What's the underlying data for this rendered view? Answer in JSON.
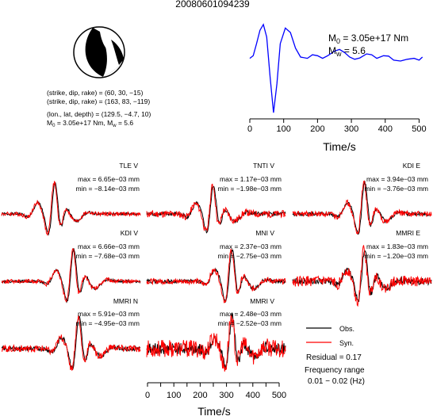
{
  "figure": {
    "title": "20080601094239",
    "source_params": [
      "(strike, dip, rake) = (60, 30, −15)",
      "(strike, dip, rake) = (163, 83, −119)",
      "(lon., lat, depth) = (129.5, −4.7, 10)"
    ],
    "mag_line": {
      "m0_text": "= 3.05e+17 Nm, M",
      "mw_text": "= 5.6"
    },
    "stf_m0_label": "= 3.05e+17 Nm",
    "stf_mw_label": "= 5.6",
    "stf_xlabel": "Time/s",
    "bottom_xlabel": "Time/s",
    "legend": {
      "obs": "Obs.",
      "syn": "Syn."
    },
    "residual": "Residual = 0.17",
    "freq_label": "Frequency range",
    "freq_value": "0.01 − 0.02 (Hz)",
    "colors": {
      "obs": "#000000",
      "syn": "#ff0000",
      "stf": "#0000ff"
    }
  },
  "chart_data": [
    {
      "type": "line",
      "name": "source time function",
      "xlabel": "Time/s",
      "xlim": [
        0,
        520
      ],
      "xticks": [
        0,
        100,
        200,
        300,
        400,
        500
      ],
      "series": [
        {
          "name": "stf",
          "color": "#0000ff",
          "points": [
            [
              0,
              0.22
            ],
            [
              10,
              0.28
            ],
            [
              20,
              0.55
            ],
            [
              30,
              0.85
            ],
            [
              40,
              0.98
            ],
            [
              50,
              0.7
            ],
            [
              60,
              -0.2
            ],
            [
              70,
              -1.0
            ],
            [
              80,
              -0.35
            ],
            [
              90,
              0.55
            ],
            [
              105,
              0.9
            ],
            [
              120,
              0.8
            ],
            [
              135,
              0.45
            ],
            [
              150,
              0.25
            ],
            [
              170,
              0.22
            ],
            [
              185,
              0.3
            ],
            [
              200,
              0.28
            ],
            [
              215,
              0.22
            ],
            [
              230,
              0.28
            ],
            [
              250,
              0.38
            ],
            [
              265,
              0.42
            ],
            [
              280,
              0.35
            ],
            [
              295,
              0.25
            ],
            [
              310,
              0.2
            ],
            [
              325,
              0.23
            ],
            [
              345,
              0.32
            ],
            [
              360,
              0.3
            ],
            [
              375,
              0.22
            ],
            [
              395,
              0.28
            ],
            [
              410,
              0.27
            ],
            [
              425,
              0.18
            ],
            [
              445,
              0.16
            ],
            [
              465,
              0.2
            ],
            [
              485,
              0.22
            ],
            [
              500,
              0.18
            ],
            [
              510,
              0.25
            ]
          ]
        }
      ]
    },
    {
      "type": "line",
      "name": "waveform fits",
      "xlabel": "Time/s",
      "xlim": [
        0,
        520
      ],
      "xticks": [
        0,
        50,
        100,
        150,
        200,
        250,
        300,
        350,
        400,
        450,
        500
      ],
      "panels": [
        {
          "station": "TLE V",
          "max": "max = 6.65e−03 mm",
          "min": "min = −8.14e−03 mm",
          "peak_t": 200,
          "amp": 1.0,
          "noise": 0.06
        },
        {
          "station": "TNTI V",
          "max": "max = 1.17e−03 mm",
          "min": "min = −1.98e−03 mm",
          "peak_t": 250,
          "amp": 0.9,
          "noise": 0.1
        },
        {
          "station": "KDI E",
          "max": "max = 3.94e−03 mm",
          "min": "min = −3.76e−03 mm",
          "peak_t": 270,
          "amp": 1.0,
          "noise": 0.08
        },
        {
          "station": "KDI V",
          "max": "max = 6.66e−03 mm",
          "min": "min = −7.68e−03 mm",
          "peak_t": 270,
          "amp": 1.0,
          "noise": 0.06
        },
        {
          "station": "MNI V",
          "max": "max = 2.37e−03 mm",
          "min": "min = −2.75e−03 mm",
          "peak_t": 320,
          "amp": 1.0,
          "noise": 0.08
        },
        {
          "station": "MMRI E",
          "max": "max = 1.83e−03 mm",
          "min": "min = −1.20e−03 mm",
          "peak_t": 270,
          "amp": 1.0,
          "noise": 0.15
        },
        {
          "station": "MMRI N",
          "max": "max = 5.91e−03 mm",
          "min": "min = −4.95e−03 mm",
          "peak_t": 290,
          "amp": 1.0,
          "noise": 0.1
        },
        {
          "station": "MMRI V",
          "max": "max = 2.48e−03 mm",
          "min": "min = −2.52e−03 mm",
          "peak_t": 320,
          "amp": 1.0,
          "noise": 0.25
        }
      ]
    }
  ]
}
